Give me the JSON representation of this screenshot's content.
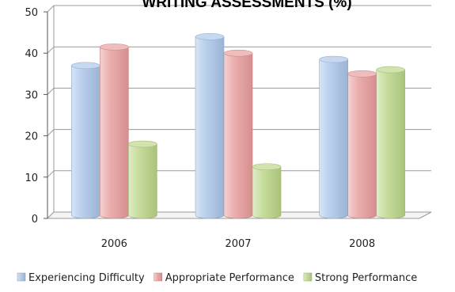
{
  "chart_data": {
    "type": "bar",
    "title": "WRITING ASSESSMENTS (%)",
    "categories": [
      "2006",
      "2007",
      "2008"
    ],
    "series": [
      {
        "name": "Experiencing Difficulty",
        "values": [
          37,
          44,
          38.5
        ]
      },
      {
        "name": "Appropriate Performance",
        "values": [
          41.5,
          40,
          35
        ]
      },
      {
        "name": "Strong Performance",
        "values": [
          18,
          12.5,
          36
        ]
      }
    ],
    "ylim": [
      0,
      50
    ],
    "yticks": [
      0,
      10,
      20,
      30,
      40,
      50
    ],
    "grid": true,
    "legend_position": "bottom",
    "colors": [
      "#a9c4e8",
      "#e79a9a",
      "#b9d486"
    ],
    "xlabel": "",
    "ylabel": ""
  }
}
